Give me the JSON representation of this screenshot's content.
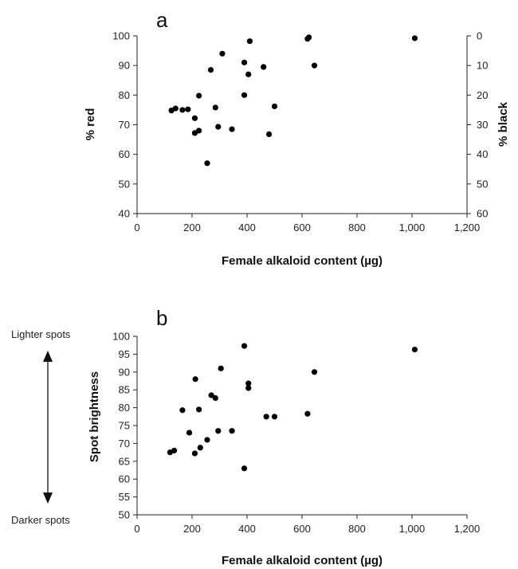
{
  "chart_data": [
    {
      "type": "scatter",
      "panel_label": "a",
      "xlabel": "Female alkaloid content (µg)",
      "ylabel": "% red",
      "y2label": "% black",
      "xlim": [
        0,
        1200
      ],
      "ylim": [
        40,
        100
      ],
      "y2lim": [
        60,
        0
      ],
      "x_ticks": [
        "0",
        "200",
        "400",
        "600",
        "800",
        "1,000",
        "1,200"
      ],
      "y_ticks": [
        "40",
        "50",
        "60",
        "70",
        "80",
        "90",
        "100"
      ],
      "y2_ticks": [
        "60",
        "50",
        "40",
        "30",
        "20",
        "10",
        "0"
      ],
      "grid": false,
      "points": [
        {
          "x": 125,
          "y": 74.8
        },
        {
          "x": 140,
          "y": 75.5
        },
        {
          "x": 165,
          "y": 75.0
        },
        {
          "x": 185,
          "y": 75.2
        },
        {
          "x": 210,
          "y": 72.2
        },
        {
          "x": 210,
          "y": 67.2
        },
        {
          "x": 225,
          "y": 68.0
        },
        {
          "x": 225,
          "y": 79.8
        },
        {
          "x": 255,
          "y": 57.0
        },
        {
          "x": 268,
          "y": 88.5
        },
        {
          "x": 285,
          "y": 75.8
        },
        {
          "x": 295,
          "y": 69.3
        },
        {
          "x": 310,
          "y": 94.0
        },
        {
          "x": 345,
          "y": 68.5
        },
        {
          "x": 390,
          "y": 80.0
        },
        {
          "x": 390,
          "y": 91.0
        },
        {
          "x": 405,
          "y": 87.0
        },
        {
          "x": 410,
          "y": 98.2
        },
        {
          "x": 460,
          "y": 89.5
        },
        {
          "x": 480,
          "y": 66.8
        },
        {
          "x": 500,
          "y": 76.2
        },
        {
          "x": 620,
          "y": 99.0
        },
        {
          "x": 625,
          "y": 99.5
        },
        {
          "x": 645,
          "y": 90.0
        },
        {
          "x": 1010,
          "y": 99.2
        }
      ]
    },
    {
      "type": "scatter",
      "panel_label": "b",
      "xlabel": "Female alkaloid content (µg)",
      "ylabel": "Spot brightness",
      "xlim": [
        0,
        1200
      ],
      "ylim": [
        50,
        100
      ],
      "x_ticks": [
        "0",
        "200",
        "400",
        "600",
        "800",
        "1,000",
        "1,200"
      ],
      "y_ticks": [
        "50",
        "55",
        "60",
        "65",
        "70",
        "75",
        "80",
        "85",
        "90",
        "95",
        "100"
      ],
      "grid": false,
      "annotations": {
        "top": "Lighter spots",
        "bottom": "Darker spots"
      },
      "points": [
        {
          "x": 120,
          "y": 67.5
        },
        {
          "x": 135,
          "y": 68.0
        },
        {
          "x": 165,
          "y": 79.3
        },
        {
          "x": 190,
          "y": 73.0
        },
        {
          "x": 210,
          "y": 67.2
        },
        {
          "x": 212,
          "y": 88.0
        },
        {
          "x": 225,
          "y": 79.5
        },
        {
          "x": 230,
          "y": 68.8
        },
        {
          "x": 255,
          "y": 71.0
        },
        {
          "x": 270,
          "y": 83.5
        },
        {
          "x": 285,
          "y": 82.7
        },
        {
          "x": 295,
          "y": 73.5
        },
        {
          "x": 305,
          "y": 91.0
        },
        {
          "x": 345,
          "y": 73.5
        },
        {
          "x": 390,
          "y": 97.3
        },
        {
          "x": 390,
          "y": 63.0
        },
        {
          "x": 405,
          "y": 86.8
        },
        {
          "x": 405,
          "y": 85.5
        },
        {
          "x": 470,
          "y": 77.5
        },
        {
          "x": 500,
          "y": 77.5
        },
        {
          "x": 620,
          "y": 78.3
        },
        {
          "x": 645,
          "y": 90.0
        },
        {
          "x": 1010,
          "y": 96.3
        }
      ]
    }
  ]
}
